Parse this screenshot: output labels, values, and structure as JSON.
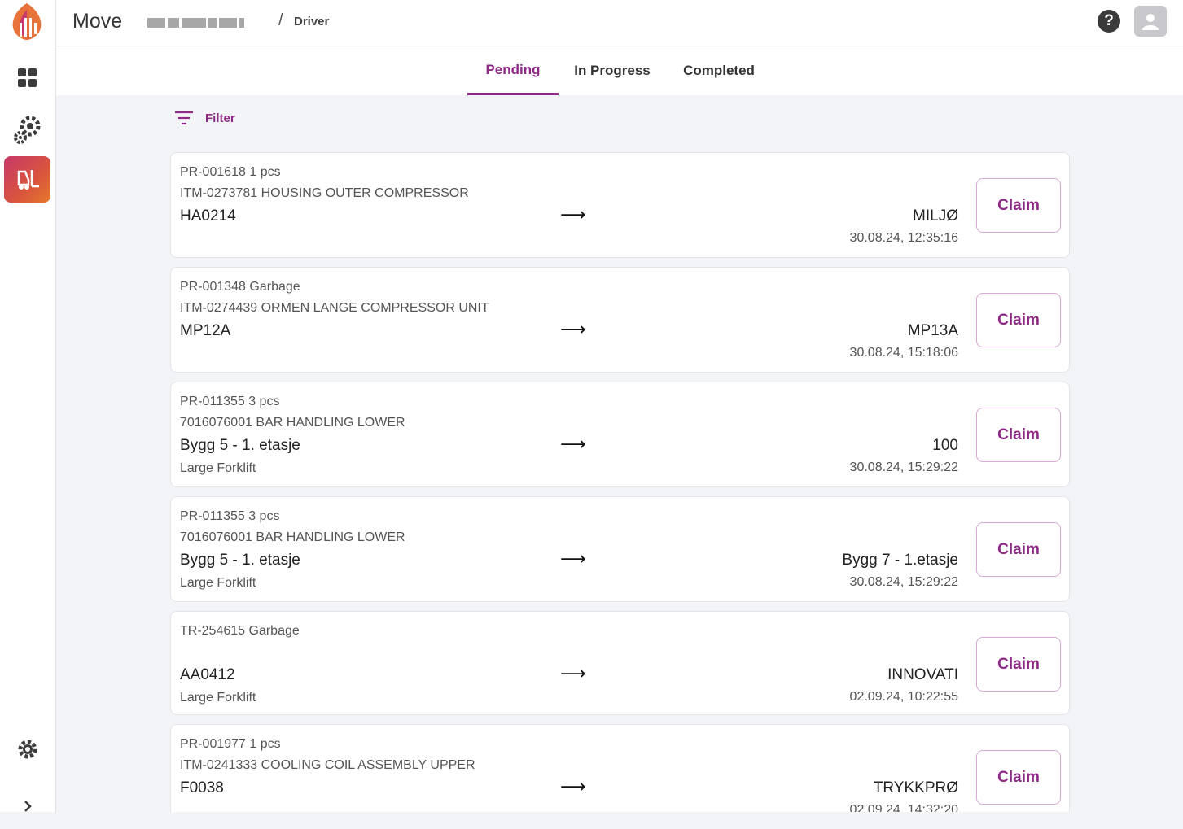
{
  "app": {
    "title": "Move"
  },
  "breadcrumb": {
    "current": "Driver",
    "separator": "/"
  },
  "header": {
    "help_icon": "help-circle-icon",
    "avatar_icon": "user-avatar-icon"
  },
  "sidebar": {
    "items": [
      {
        "name": "dashboard",
        "icon": "grid-icon"
      },
      {
        "name": "settings-gears",
        "icon": "gears-icon"
      },
      {
        "name": "driver",
        "icon": "forklift-icon",
        "active": true
      }
    ],
    "bottom": [
      {
        "name": "settings",
        "icon": "gear-icon"
      },
      {
        "name": "expand",
        "icon": "chevron-right-icon"
      }
    ]
  },
  "tabs": [
    {
      "label": "Pending",
      "active": true
    },
    {
      "label": "In Progress",
      "active": false
    },
    {
      "label": "Completed",
      "active": false
    }
  ],
  "filter": {
    "label": "Filter"
  },
  "colors": {
    "accent": "#8e2a86",
    "active_nav_gradient": [
      "#c7396a",
      "#e67a2c"
    ]
  },
  "tasks": [
    {
      "ref": "PR-001618 1 pcs",
      "item": "ITM-0273781 HOUSING OUTER COMPRESSOR",
      "from": "HA0214",
      "vehicle": "",
      "arrow": "⟶",
      "to": "MILJØ",
      "timestamp": "30.08.24, 12:35:16",
      "claim": "Claim"
    },
    {
      "ref": "PR-001348 Garbage",
      "item": "ITM-0274439 ORMEN LANGE COMPRESSOR UNIT",
      "from": "MP12A",
      "vehicle": "",
      "arrow": "⟶",
      "to": "MP13A",
      "timestamp": "30.08.24, 15:18:06",
      "claim": "Claim"
    },
    {
      "ref": "PR-011355 3 pcs",
      "item": "7016076001 BAR HANDLING LOWER",
      "from": "Bygg 5 - 1. etasje",
      "vehicle": "Large Forklift",
      "arrow": "⟶",
      "to": "100",
      "timestamp": "30.08.24, 15:29:22",
      "claim": "Claim"
    },
    {
      "ref": "PR-011355 3 pcs",
      "item": "7016076001 BAR HANDLING LOWER",
      "from": "Bygg 5 - 1. etasje",
      "vehicle": "Large Forklift",
      "arrow": "⟶",
      "to": "Bygg 7 - 1.etasje",
      "timestamp": "30.08.24, 15:29:22",
      "claim": "Claim"
    },
    {
      "ref": "TR-254615 Garbage",
      "item": "",
      "from": "AA0412",
      "vehicle": "Large Forklift",
      "arrow": "⟶",
      "to": "INNOVATI",
      "timestamp": "02.09.24, 10:22:55",
      "claim": "Claim"
    },
    {
      "ref": "PR-001977 1 pcs",
      "item": "ITM-0241333 COOLING COIL ASSEMBLY UPPER",
      "from": "F0038",
      "vehicle": "",
      "arrow": "⟶",
      "to": "TRYKKPRØ",
      "timestamp": "02.09.24, 14:32:20",
      "claim": "Claim"
    }
  ]
}
